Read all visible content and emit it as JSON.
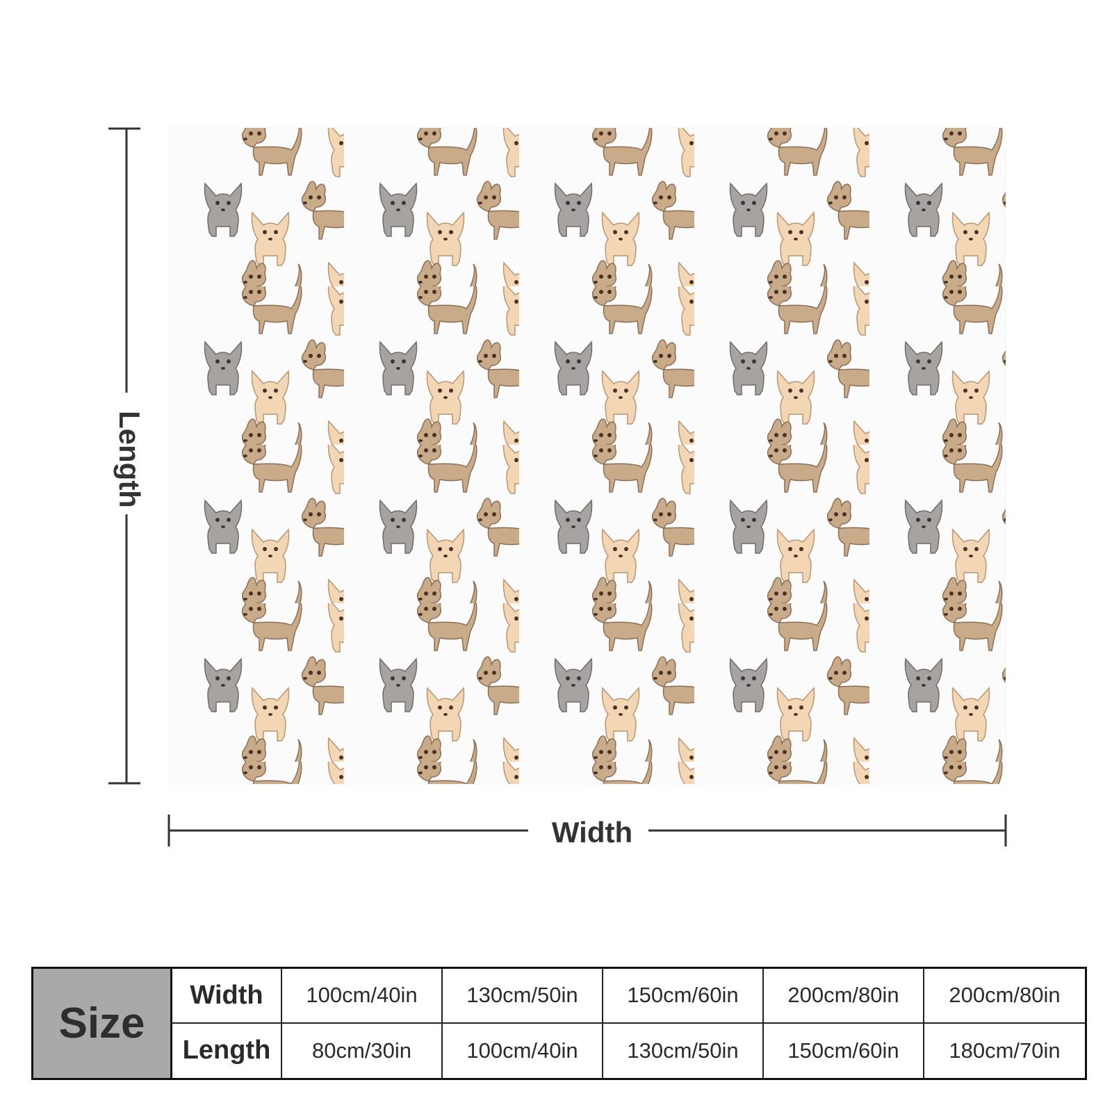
{
  "dimensions": {
    "length_label": "Length",
    "width_label": "Width"
  },
  "product": {
    "pattern": "chihuahua dogs",
    "colors": {
      "fawn": "#c9ab8a",
      "cream": "#f3d6b4",
      "grey": "#a6a3a1",
      "background": "#fbfbfb"
    }
  },
  "size_table": {
    "header": "Size",
    "row_labels": {
      "width": "Width",
      "length": "Length"
    },
    "columns": [
      {
        "width": "100cm/40in",
        "length": "80cm/30in"
      },
      {
        "width": "130cm/50in",
        "length": "100cm/40in"
      },
      {
        "width": "150cm/60in",
        "length": "130cm/50in"
      },
      {
        "width": "200cm/80in",
        "length": "150cm/60in"
      },
      {
        "width": "200cm/80in",
        "length": "180cm/70in"
      }
    ]
  }
}
